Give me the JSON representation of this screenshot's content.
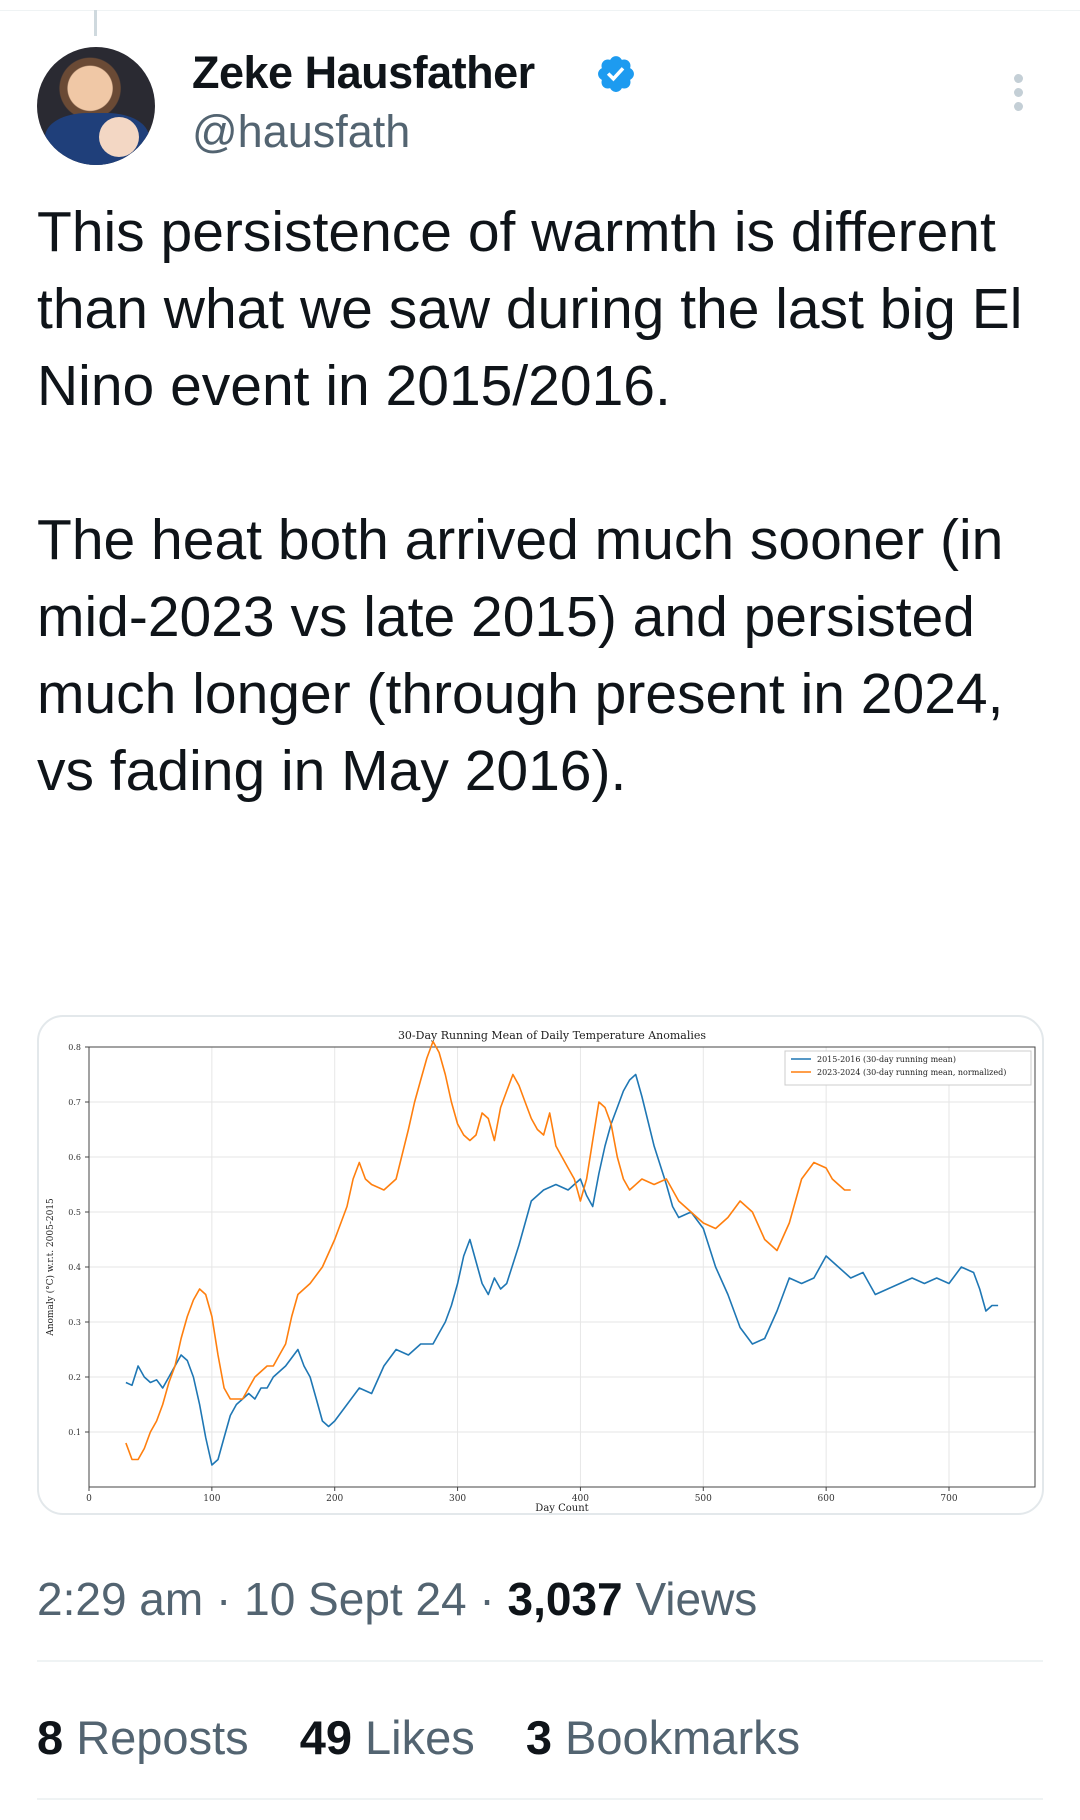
{
  "author": {
    "name": "Zeke Hausfather",
    "handle": "@hausfath",
    "verified_color": "#1d9bf0",
    "avatar_icon": "profile-photo"
  },
  "tweet": {
    "paragraphs": [
      "This persistence of warmth is different than what we saw during the last big El Nino event in 2015/2016.",
      "The heat both arrived much sooner (in mid-2023 vs late 2015) and persisted much longer (through present in 2024, vs fading in May 2016)."
    ]
  },
  "meta": {
    "time": "2:29 am",
    "separator": "·",
    "date": "10 Sept 24",
    "views_count": "3,037",
    "views_label": "Views"
  },
  "stats": {
    "reposts_count": "8",
    "reposts_label": "Reposts",
    "likes_count": "49",
    "likes_label": "Likes",
    "bookmarks_count": "3",
    "bookmarks_label": "Bookmarks"
  },
  "chart_data": {
    "type": "line",
    "title": "30-Day Running Mean of Daily Temperature Anomalies",
    "xlabel": "Day Count",
    "ylabel": "Anomaly (°C) w.r.t. 2005-2015",
    "xlim": [
      0,
      770
    ],
    "ylim": [
      0,
      0.8
    ],
    "xticks": [
      "0",
      "100",
      "200",
      "300",
      "400",
      "500",
      "600",
      "700"
    ],
    "yticks": [
      "0.1",
      "0.2",
      "0.3",
      "0.4",
      "0.5",
      "0.6",
      "0.7",
      "0.8"
    ],
    "grid": true,
    "legend_position": "top-right",
    "series": [
      {
        "name": "2015-2016 (30-day running mean)",
        "color": "#1f77b4",
        "x": [
          30,
          35,
          40,
          45,
          50,
          55,
          60,
          65,
          70,
          75,
          80,
          85,
          90,
          95,
          100,
          105,
          110,
          115,
          120,
          125,
          130,
          135,
          140,
          145,
          150,
          160,
          170,
          175,
          180,
          185,
          190,
          195,
          200,
          210,
          220,
          230,
          240,
          250,
          260,
          270,
          280,
          285,
          290,
          295,
          300,
          305,
          310,
          315,
          320,
          325,
          330,
          335,
          340,
          350,
          360,
          370,
          380,
          390,
          400,
          405,
          410,
          415,
          420,
          425,
          430,
          435,
          440,
          445,
          450,
          460,
          470,
          475,
          480,
          490,
          500,
          510,
          520,
          530,
          540,
          550,
          560,
          570,
          580,
          590,
          600,
          610,
          620,
          630,
          640,
          650,
          660,
          670,
          680,
          690,
          700,
          710,
          720,
          725,
          730,
          735,
          740
        ],
        "y": [
          0.19,
          0.185,
          0.22,
          0.2,
          0.19,
          0.195,
          0.18,
          0.2,
          0.22,
          0.24,
          0.23,
          0.2,
          0.15,
          0.09,
          0.04,
          0.05,
          0.09,
          0.13,
          0.15,
          0.16,
          0.17,
          0.16,
          0.18,
          0.18,
          0.2,
          0.22,
          0.25,
          0.22,
          0.2,
          0.16,
          0.12,
          0.11,
          0.12,
          0.15,
          0.18,
          0.17,
          0.22,
          0.25,
          0.24,
          0.26,
          0.26,
          0.28,
          0.3,
          0.33,
          0.37,
          0.42,
          0.45,
          0.41,
          0.37,
          0.35,
          0.38,
          0.36,
          0.37,
          0.44,
          0.52,
          0.54,
          0.55,
          0.54,
          0.56,
          0.53,
          0.51,
          0.57,
          0.62,
          0.66,
          0.69,
          0.72,
          0.74,
          0.75,
          0.71,
          0.62,
          0.55,
          0.51,
          0.49,
          0.5,
          0.47,
          0.4,
          0.35,
          0.29,
          0.26,
          0.27,
          0.32,
          0.38,
          0.37,
          0.38,
          0.42,
          0.4,
          0.38,
          0.39,
          0.35,
          0.36,
          0.37,
          0.38,
          0.37,
          0.38,
          0.37,
          0.4,
          0.39,
          0.36,
          0.32,
          0.33,
          0.33
        ]
      },
      {
        "name": "2023-2024 (30-day running mean, normalized)",
        "color": "#ff7f0e",
        "x": [
          30,
          35,
          40,
          45,
          50,
          55,
          60,
          65,
          70,
          75,
          80,
          85,
          90,
          95,
          100,
          105,
          110,
          115,
          120,
          125,
          130,
          135,
          140,
          145,
          150,
          155,
          160,
          165,
          170,
          180,
          190,
          200,
          210,
          215,
          220,
          225,
          230,
          240,
          250,
          260,
          265,
          270,
          275,
          280,
          285,
          290,
          295,
          300,
          305,
          310,
          315,
          320,
          325,
          330,
          335,
          340,
          345,
          350,
          355,
          360,
          365,
          370,
          375,
          380,
          385,
          390,
          395,
          400,
          405,
          410,
          415,
          420,
          425,
          430,
          435,
          440,
          450,
          460,
          470,
          480,
          490,
          500,
          510,
          520,
          530,
          540,
          550,
          560,
          570,
          580,
          590,
          600,
          605,
          610,
          615,
          620
        ],
        "y": [
          0.08,
          0.05,
          0.05,
          0.07,
          0.1,
          0.12,
          0.15,
          0.19,
          0.22,
          0.27,
          0.31,
          0.34,
          0.36,
          0.35,
          0.31,
          0.24,
          0.18,
          0.16,
          0.16,
          0.16,
          0.18,
          0.2,
          0.21,
          0.22,
          0.22,
          0.24,
          0.26,
          0.31,
          0.35,
          0.37,
          0.4,
          0.45,
          0.51,
          0.56,
          0.59,
          0.56,
          0.55,
          0.54,
          0.56,
          0.65,
          0.7,
          0.74,
          0.78,
          0.81,
          0.79,
          0.75,
          0.7,
          0.66,
          0.64,
          0.63,
          0.64,
          0.68,
          0.67,
          0.63,
          0.69,
          0.72,
          0.75,
          0.73,
          0.7,
          0.67,
          0.65,
          0.64,
          0.68,
          0.62,
          0.6,
          0.58,
          0.56,
          0.52,
          0.56,
          0.63,
          0.7,
          0.69,
          0.66,
          0.6,
          0.56,
          0.54,
          0.56,
          0.55,
          0.56,
          0.52,
          0.5,
          0.48,
          0.47,
          0.49,
          0.52,
          0.5,
          0.45,
          0.43,
          0.48,
          0.56,
          0.59,
          0.58,
          0.56,
          0.55,
          0.54,
          0.54
        ]
      }
    ]
  }
}
